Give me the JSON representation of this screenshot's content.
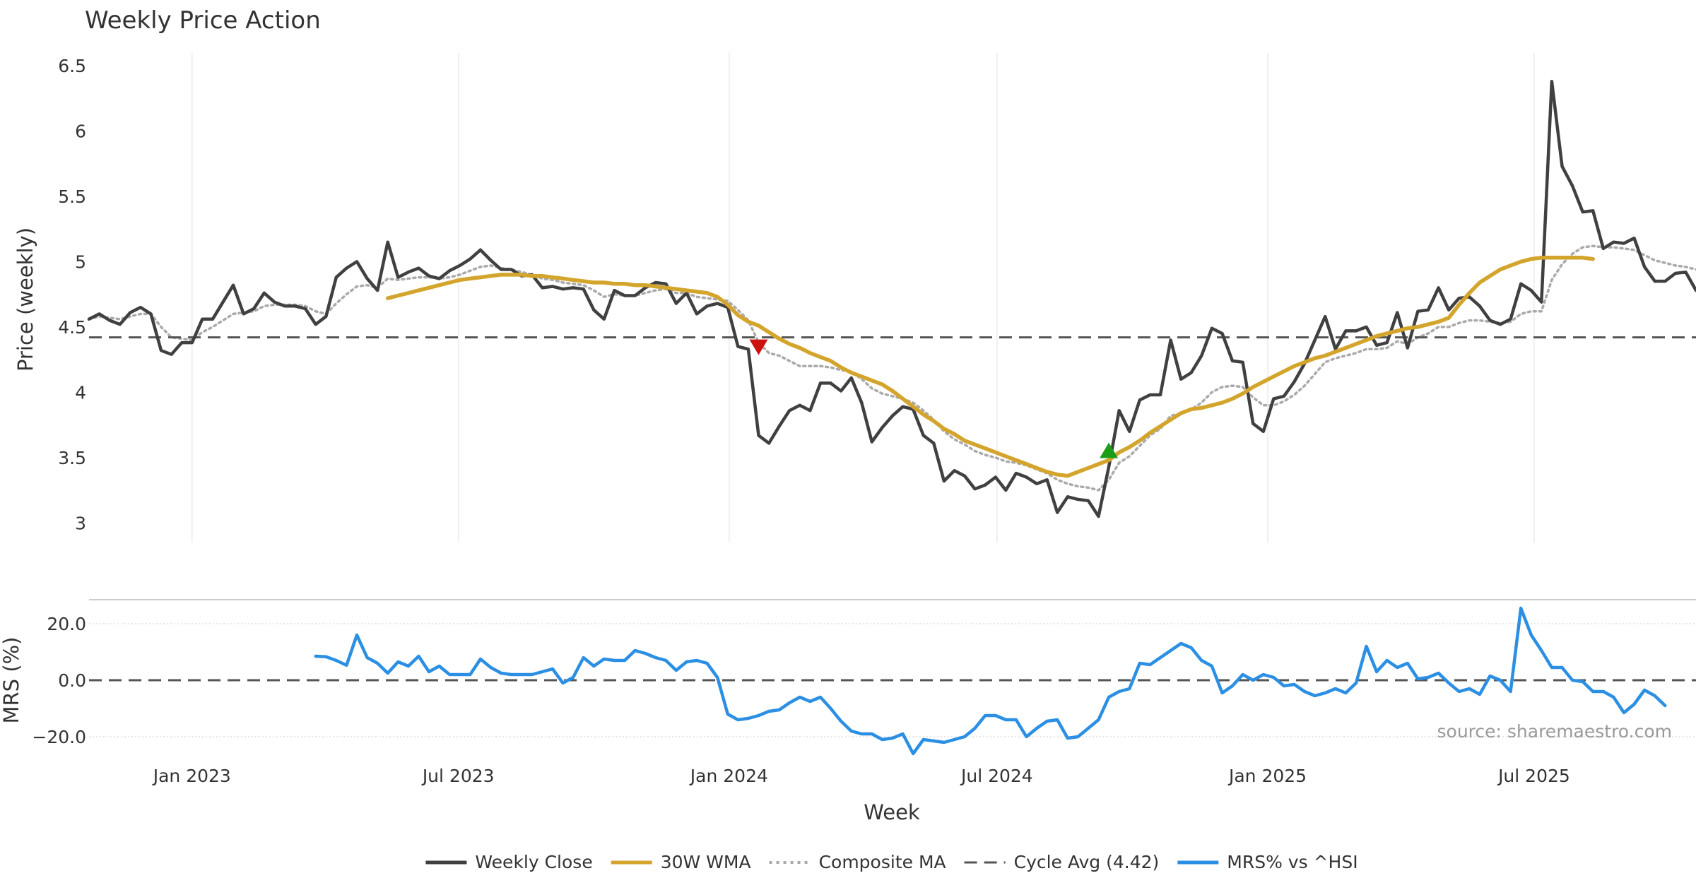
{
  "colors": {
    "close": "#404040",
    "wma": "#d4a52c",
    "composite": "#aaaaaa",
    "cycle": "#555555",
    "mrs": "#2b8fe3",
    "sell_marker": "#cc1111",
    "buy_marker": "#1a9e1a",
    "grid": "#ebebeb"
  },
  "chart_data": [
    {
      "type": "line",
      "title": "Weekly Price Action",
      "ylabel": "Price (weekly)",
      "ylim": [
        2.85,
        6.5
      ],
      "yticks": [
        "6.5",
        "6",
        "5.5",
        "5",
        "4.5",
        "4",
        "3.5",
        "3"
      ],
      "x_tick_dates": [
        "2023-01-01",
        "2023-07-01",
        "2024-01-01",
        "2024-07-01",
        "2025-01-01",
        "2025-07-01"
      ],
      "x_start": "2022-10-23",
      "x_end": "2025-10-19",
      "grid": "vertical",
      "series": [
        {
          "name": "Weekly Close",
          "values": [
            4.56,
            4.6,
            4.55,
            4.52,
            4.61,
            4.65,
            4.6,
            4.32,
            4.29,
            4.38,
            4.38,
            4.56,
            4.56,
            4.69,
            4.82,
            4.6,
            4.64,
            4.76,
            4.69,
            4.66,
            4.66,
            4.64,
            4.52,
            4.58,
            4.88,
            4.95,
            5.0,
            4.87,
            4.78,
            5.15,
            4.88,
            4.92,
            4.95,
            4.89,
            4.87,
            4.93,
            4.97,
            5.02,
            5.09,
            5.01,
            4.94,
            4.94,
            4.89,
            4.9,
            4.8,
            4.81,
            4.79,
            4.8,
            4.79,
            4.63,
            4.56,
            4.78,
            4.74,
            4.74,
            4.8,
            4.84,
            4.83,
            4.68,
            4.76,
            4.6,
            4.66,
            4.68,
            4.65,
            4.35,
            4.33,
            3.67,
            3.61,
            3.74,
            3.86,
            3.9,
            3.86,
            4.07,
            4.07,
            4.01,
            4.11,
            3.92,
            3.62,
            3.73,
            3.82,
            3.89,
            3.87,
            3.67,
            3.61,
            3.32,
            3.4,
            3.36,
            3.26,
            3.29,
            3.35,
            3.25,
            3.38,
            3.35,
            3.3,
            3.33,
            3.08,
            3.2,
            3.18,
            3.17,
            3.05,
            3.43,
            3.86,
            3.7,
            3.94,
            3.98,
            3.98,
            4.4,
            4.1,
            4.15,
            4.28,
            4.49,
            4.45,
            4.24,
            4.23,
            3.76,
            3.7,
            3.95,
            3.97,
            4.08,
            4.22,
            4.4,
            4.58,
            4.33,
            4.47,
            4.47,
            4.5,
            4.36,
            4.38,
            4.61,
            4.34,
            4.62,
            4.63,
            4.8,
            4.63,
            4.72,
            4.73,
            4.66,
            4.55,
            4.52,
            4.56,
            4.83,
            4.78,
            4.69,
            6.38,
            5.73,
            5.58,
            5.38,
            5.39,
            5.1,
            5.15,
            5.14,
            5.18,
            4.96,
            4.85,
            4.85,
            4.91,
            4.92,
            4.78
          ]
        },
        {
          "name": "30W WMA",
          "start_index": 29,
          "values": [
            4.72,
            4.74,
            4.76,
            4.78,
            4.8,
            4.82,
            4.84,
            4.86,
            4.87,
            4.88,
            4.89,
            4.9,
            4.9,
            4.9,
            4.89,
            4.89,
            4.88,
            4.87,
            4.86,
            4.85,
            4.84,
            4.84,
            4.83,
            4.83,
            4.82,
            4.82,
            4.81,
            4.8,
            4.79,
            4.78,
            4.77,
            4.76,
            4.73,
            4.67,
            4.59,
            4.54,
            4.51,
            4.46,
            4.41,
            4.37,
            4.34,
            4.3,
            4.27,
            4.24,
            4.19,
            4.15,
            4.12,
            4.09,
            4.06,
            4.01,
            3.95,
            3.89,
            3.83,
            3.78,
            3.72,
            3.68,
            3.63,
            3.6,
            3.57,
            3.54,
            3.51,
            3.48,
            3.45,
            3.42,
            3.39,
            3.37,
            3.36,
            3.39,
            3.42,
            3.45,
            3.48,
            3.54,
            3.58,
            3.63,
            3.69,
            3.74,
            3.79,
            3.84,
            3.87,
            3.88,
            3.9,
            3.92,
            3.95,
            3.99,
            4.04,
            4.08,
            4.12,
            4.16,
            4.2,
            4.23,
            4.26,
            4.28,
            4.31,
            4.34,
            4.37,
            4.4,
            4.43,
            4.45,
            4.47,
            4.49,
            4.5,
            4.52,
            4.54,
            4.57,
            4.67,
            4.76,
            4.84,
            4.89,
            4.94,
            4.97,
            5.0,
            5.02,
            5.03,
            5.03,
            5.03,
            5.03,
            5.03,
            5.02
          ]
        },
        {
          "name": "Composite MA",
          "values": [
            4.56,
            4.58,
            4.57,
            4.56,
            4.58,
            4.6,
            4.6,
            4.5,
            4.42,
            4.41,
            4.4,
            4.46,
            4.5,
            4.55,
            4.6,
            4.61,
            4.62,
            4.66,
            4.67,
            4.67,
            4.67,
            4.66,
            4.62,
            4.6,
            4.68,
            4.75,
            4.81,
            4.82,
            4.8,
            4.87,
            4.86,
            4.87,
            4.88,
            4.88,
            4.87,
            4.88,
            4.9,
            4.93,
            4.96,
            4.97,
            4.95,
            4.94,
            4.92,
            4.9,
            4.87,
            4.86,
            4.84,
            4.83,
            4.82,
            4.78,
            4.73,
            4.75,
            4.74,
            4.74,
            4.76,
            4.78,
            4.79,
            4.76,
            4.76,
            4.73,
            4.72,
            4.71,
            4.7,
            4.63,
            4.55,
            4.38,
            4.3,
            4.28,
            4.24,
            4.2,
            4.2,
            4.2,
            4.19,
            4.17,
            4.16,
            4.1,
            4.03,
            3.99,
            3.97,
            3.95,
            3.92,
            3.86,
            3.79,
            3.7,
            3.64,
            3.6,
            3.55,
            3.52,
            3.5,
            3.47,
            3.46,
            3.44,
            3.41,
            3.38,
            3.33,
            3.3,
            3.28,
            3.27,
            3.25,
            3.33,
            3.46,
            3.51,
            3.59,
            3.67,
            3.72,
            3.82,
            3.84,
            3.87,
            3.92,
            4.0,
            4.04,
            4.05,
            4.04,
            3.96,
            3.9,
            3.9,
            3.93,
            3.98,
            4.05,
            4.14,
            4.23,
            4.26,
            4.28,
            4.3,
            4.33,
            4.33,
            4.34,
            4.39,
            4.37,
            4.42,
            4.45,
            4.5,
            4.5,
            4.53,
            4.55,
            4.55,
            4.54,
            4.53,
            4.54,
            4.6,
            4.62,
            4.62,
            4.86,
            4.98,
            5.06,
            5.11,
            5.12,
            5.11,
            5.11,
            5.1,
            5.09,
            5.05,
            5.01,
            4.99,
            4.97,
            4.96,
            4.94
          ]
        },
        {
          "name": "Cycle Avg (4.42)",
          "constant": 4.42
        }
      ],
      "markers": [
        {
          "type": "sell",
          "index": 65,
          "y": 4.35
        },
        {
          "type": "buy",
          "index": 99,
          "y": 3.55
        }
      ]
    },
    {
      "type": "line",
      "ylabel": "MRS (%)",
      "ylim": [
        -27,
        28
      ],
      "yticks": [
        "20.0",
        "0.0",
        "−20.0"
      ],
      "reference_line": 0,
      "source": "source: sharemaestro.com",
      "series": [
        {
          "name": "MRS% vs ^HSI",
          "start_index": 22,
          "values": [
            8.5,
            8.3,
            7,
            5.3,
            16,
            8,
            6,
            2.5,
            6.5,
            5,
            8.5,
            3,
            5,
            2,
            2,
            2,
            7.5,
            4.5,
            2.5,
            2,
            2,
            2,
            3,
            4,
            -1,
            1,
            8,
            5,
            7.5,
            7,
            7,
            10.5,
            9.5,
            8,
            7,
            3.5,
            6.5,
            7,
            6,
            1,
            -12,
            -14,
            -13.5,
            -12.5,
            -11,
            -10.5,
            -8,
            -6,
            -7.5,
            -6,
            -10,
            -14.5,
            -18,
            -19,
            -19,
            -21,
            -20.5,
            -19,
            -26,
            -21,
            -21.5,
            -22,
            -21,
            -20,
            -17,
            -12.5,
            -12.5,
            -14,
            -14,
            -20,
            -17,
            -14.5,
            -14,
            -20.5,
            -20,
            -17,
            -14,
            -6,
            -4,
            -3,
            6,
            5.5,
            8,
            10.5,
            13,
            11.5,
            7,
            5,
            -4.5,
            -2,
            2,
            0,
            2,
            1,
            -2,
            -1.5,
            -4,
            -5.5,
            -4.5,
            -3,
            -4.5,
            -1,
            12,
            3,
            7,
            4.5,
            6,
            0.5,
            1,
            2.5,
            -1,
            -4,
            -3,
            -5,
            1.5,
            0,
            -4,
            25.5,
            16,
            10.5,
            4.5,
            4.5,
            0,
            -0.5,
            -4,
            -4,
            -6,
            -11.5,
            -8.5,
            -3.5,
            -5.5,
            -9
          ]
        }
      ]
    }
  ],
  "xaxis": {
    "label": "Week",
    "ticks": [
      "Jan 2023",
      "Jul 2023",
      "Jan 2024",
      "Jul 2024",
      "Jan 2025",
      "Jul 2025"
    ]
  },
  "legend": {
    "items": [
      {
        "label": "Weekly Close",
        "style": "solid",
        "color_key": "close"
      },
      {
        "label": "30W WMA",
        "style": "solid",
        "color_key": "wma"
      },
      {
        "label": "Composite MA",
        "style": "dotted",
        "color_key": "composite"
      },
      {
        "label": "Cycle Avg (4.42)",
        "style": "dashed",
        "color_key": "cycle"
      },
      {
        "label": "MRS% vs ^HSI",
        "style": "solid",
        "color_key": "mrs"
      }
    ]
  }
}
